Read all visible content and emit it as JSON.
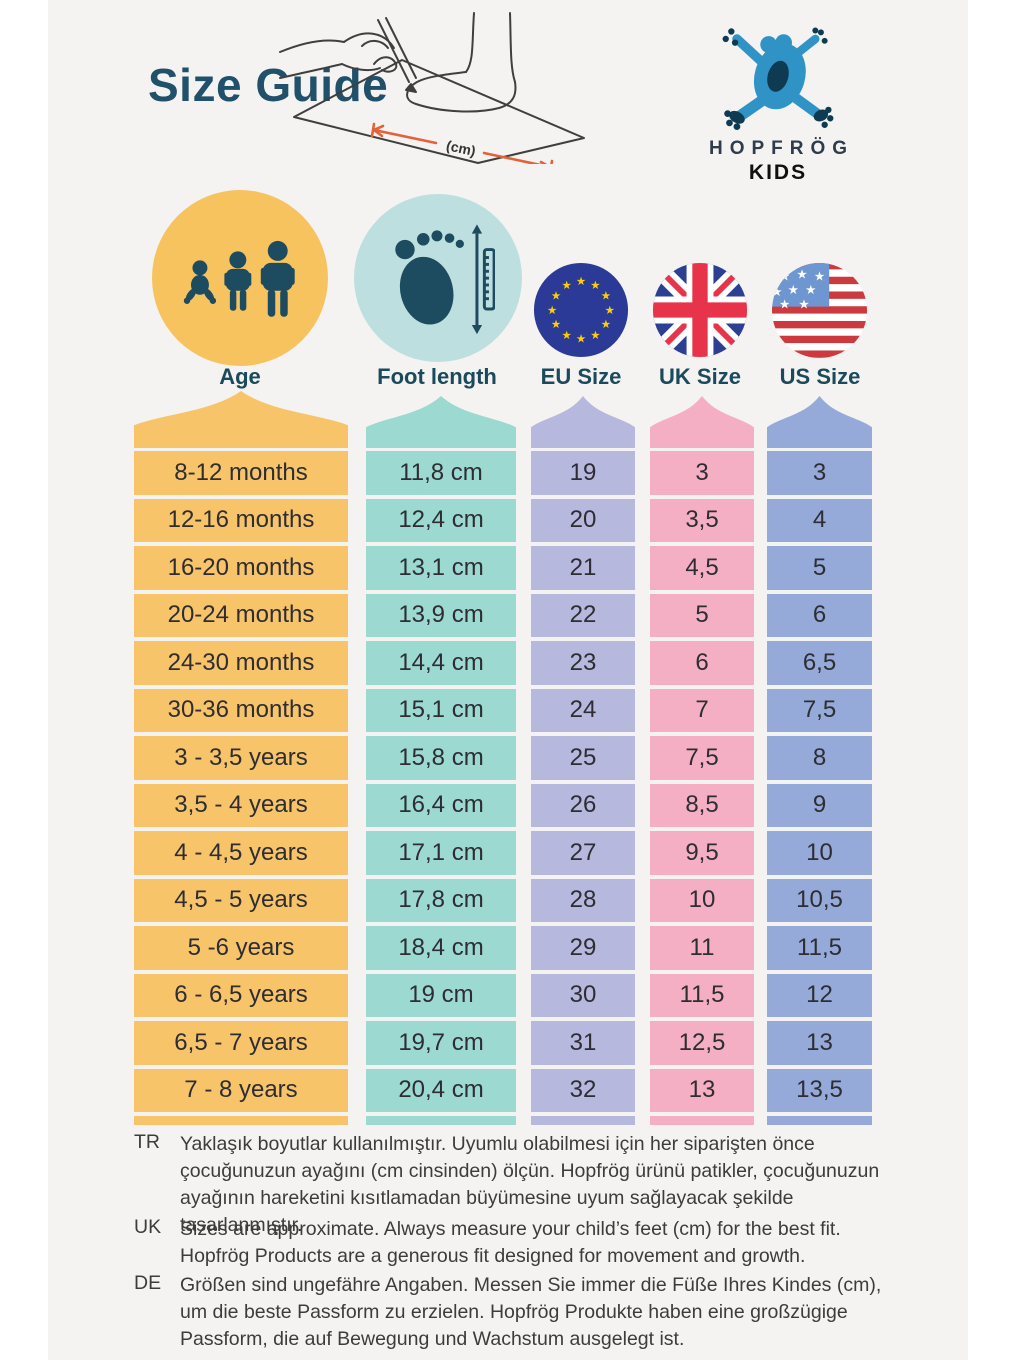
{
  "page": {
    "title": "Size Guide"
  },
  "brand": {
    "name_top": "HOPFRÖG",
    "name_bottom": "KIDS"
  },
  "illustration": {
    "cm_label": "(cm)",
    "arrow_color": "#E2633A"
  },
  "palette": {
    "background": "#F4F3F1",
    "title_navy": "#20506A",
    "icon_navy": "#1D4B60",
    "frog_blue": "#3093C5",
    "frog_dark": "#0E3B52"
  },
  "columns": [
    {
      "key": "age",
      "label": "Age",
      "color": "#F8C469",
      "icon": "family-icon",
      "icon_bg": "#F6C35F"
    },
    {
      "key": "foot",
      "label": "Foot length",
      "color": "#9CD9D0",
      "icon": "foot-ruler-icon",
      "icon_bg": "#BEDFDF"
    },
    {
      "key": "eu",
      "label": "EU Size",
      "color": "#B7B8DD",
      "icon": "eu-flag-icon",
      "icon_bg": "#2A3A96"
    },
    {
      "key": "uk",
      "label": "UK Size",
      "color": "#F5AFC4",
      "icon": "uk-flag-icon",
      "icon_bg": "#2C3F92"
    },
    {
      "key": "us",
      "label": "US Size",
      "color": "#95AAD8",
      "icon": "us-flag-icon",
      "icon_bg": "#FFFFFF"
    }
  ],
  "table": {
    "rows": [
      {
        "age": "8-12 months",
        "foot": "11,8 cm",
        "eu": "19",
        "uk": "3",
        "us": "3"
      },
      {
        "age": "12-16 months",
        "foot": "12,4 cm",
        "eu": "20",
        "uk": "3,5",
        "us": "4"
      },
      {
        "age": "16-20 months",
        "foot": "13,1 cm",
        "eu": "21",
        "uk": "4,5",
        "us": "5"
      },
      {
        "age": "20-24 months",
        "foot": "13,9 cm",
        "eu": "22",
        "uk": "5",
        "us": "6"
      },
      {
        "age": "24-30 months",
        "foot": "14,4 cm",
        "eu": "23",
        "uk": "6",
        "us": "6,5"
      },
      {
        "age": "30-36 months",
        "foot": "15,1 cm",
        "eu": "24",
        "uk": "7",
        "us": "7,5"
      },
      {
        "age": "3 - 3,5 years",
        "foot": "15,8 cm",
        "eu": "25",
        "uk": "7,5",
        "us": "8"
      },
      {
        "age": "3,5 - 4 years",
        "foot": "16,4 cm",
        "eu": "26",
        "uk": "8,5",
        "us": "9"
      },
      {
        "age": "4 - 4,5 years",
        "foot": "17,1 cm",
        "eu": "27",
        "uk": "9,5",
        "us": "10"
      },
      {
        "age": "4,5 - 5 years",
        "foot": "17,8 cm",
        "eu": "28",
        "uk": "10",
        "us": "10,5"
      },
      {
        "age": "5 -6 years",
        "foot": "18,4 cm",
        "eu": "29",
        "uk": "11",
        "us": "11,5"
      },
      {
        "age": "6 - 6,5 years",
        "foot": "19 cm",
        "eu": "30",
        "uk": "11,5",
        "us": "12"
      },
      {
        "age": "6,5 - 7 years",
        "foot": "19,7 cm",
        "eu": "31",
        "uk": "12,5",
        "us": "13"
      },
      {
        "age": "7 - 8 years",
        "foot": "20,4 cm",
        "eu": "32",
        "uk": "13",
        "us": "13,5"
      }
    ]
  },
  "notes": [
    {
      "lang": "TR",
      "text": "Yaklaşık boyutlar kullanılmıştır. Uyumlu olabilmesi için her siparişten önce çocuğunuzun ayağını (cm cinsinden) ölçün. Hopfrög ürünü patikler, çocuğunuzun ayağının hareketini kısıtlamadan büyümesine uyum sağlayacak şekilde tasarlanmıştır."
    },
    {
      "lang": "UK",
      "text": "Sizes are approximate. Always measure your child’s feet (cm) for the best fit. Hopfrög Products are a generous fit designed for movement and growth."
    },
    {
      "lang": "DE",
      "text": "Größen sind ungefähre Angaben. Messen Sie immer die Füße Ihres Kindes (cm), um die beste Passform zu erzielen. Hopfrög Produkte haben eine großzügige Passform, die auf Bewegung und Wachstum ausgelegt ist."
    }
  ]
}
